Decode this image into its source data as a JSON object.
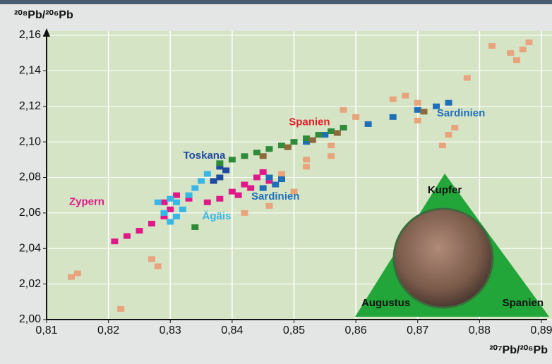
{
  "chart_data": {
    "type": "scatter",
    "y_axis_title": "²⁰⁸Pb/²⁰⁶Pb",
    "x_axis_title": "²⁰⁷Pb/²⁰⁶Pb",
    "xlim": [
      0.81,
      0.89
    ],
    "ylim": [
      2.0,
      2.16
    ],
    "grid": true,
    "xticks": [
      {
        "value": 0.81,
        "label": "0,81"
      },
      {
        "value": 0.82,
        "label": "0,82"
      },
      {
        "value": 0.83,
        "label": "0,83"
      },
      {
        "value": 0.84,
        "label": "0,84"
      },
      {
        "value": 0.85,
        "label": "0,85"
      },
      {
        "value": 0.86,
        "label": "0,86"
      },
      {
        "value": 0.87,
        "label": "0,87"
      },
      {
        "value": 0.88,
        "label": "0,88"
      },
      {
        "value": 0.89,
        "label": "0,89"
      }
    ],
    "yticks": [
      {
        "value": 2.0,
        "label": "2,00"
      },
      {
        "value": 2.02,
        "label": "2,02"
      },
      {
        "value": 2.04,
        "label": "2,04"
      },
      {
        "value": 2.06,
        "label": "2,06"
      },
      {
        "value": 2.08,
        "label": "2,08"
      },
      {
        "value": 2.1,
        "label": "2,10"
      },
      {
        "value": 2.12,
        "label": "2,12"
      },
      {
        "value": 2.14,
        "label": "2,14"
      },
      {
        "value": 2.16,
        "label": "2,16"
      }
    ],
    "series": [
      {
        "color": "#e8a47c",
        "x": [
          0.815,
          0.814,
          0.822,
          0.827,
          0.828,
          0.842,
          0.846,
          0.85,
          0.852,
          0.856,
          0.86,
          0.858,
          0.852,
          0.866,
          0.868,
          0.87,
          0.875,
          0.874,
          0.876,
          0.878,
          0.882,
          0.885,
          0.887,
          0.888,
          0.886,
          0.87,
          0.848,
          0.856
        ],
        "y": [
          2.026,
          2.024,
          2.006,
          2.034,
          2.03,
          2.06,
          2.064,
          2.072,
          2.09,
          2.098,
          2.114,
          2.118,
          2.086,
          2.124,
          2.126,
          2.122,
          2.104,
          2.098,
          2.108,
          2.136,
          2.154,
          2.15,
          2.152,
          2.156,
          2.146,
          2.112,
          2.082,
          2.092
        ]
      },
      {
        "name": "Zypern",
        "color": "#e0188a",
        "label_color": "#e0188a",
        "x": [
          0.821,
          0.823,
          0.825,
          0.827,
          0.829,
          0.83,
          0.829,
          0.831,
          0.833,
          0.836,
          0.838,
          0.84,
          0.842,
          0.844,
          0.845,
          0.841,
          0.843,
          0.846
        ],
        "y": [
          2.044,
          2.047,
          2.05,
          2.054,
          2.058,
          2.062,
          2.066,
          2.07,
          2.068,
          2.066,
          2.068,
          2.072,
          2.076,
          2.08,
          2.083,
          2.07,
          2.074,
          2.078
        ]
      },
      {
        "name": "Ägäis",
        "color": "#38b6e6",
        "label_color": "#38b6e6",
        "x": [
          0.829,
          0.83,
          0.831,
          0.832,
          0.831,
          0.833,
          0.834,
          0.835,
          0.836,
          0.83,
          0.828
        ],
        "y": [
          2.06,
          2.055,
          2.058,
          2.062,
          2.066,
          2.07,
          2.074,
          2.078,
          2.082,
          2.068,
          2.066
        ]
      },
      {
        "name": "Toskana",
        "color": "#1e4aa0",
        "label_color": "#1e4aa0",
        "x": [
          0.838,
          0.839,
          0.838,
          0.837
        ],
        "y": [
          2.086,
          2.084,
          2.08,
          2.078
        ]
      },
      {
        "name": "Sardinien",
        "color": "#1f6fb8",
        "label_color": "#1f6fb8",
        "x": [
          0.846,
          0.847,
          0.845,
          0.848,
          0.852,
          0.855,
          0.858,
          0.862,
          0.866,
          0.87,
          0.873,
          0.875
        ],
        "y": [
          2.08,
          2.076,
          2.074,
          2.079,
          2.1,
          2.104,
          2.108,
          2.11,
          2.114,
          2.118,
          2.12,
          2.122
        ]
      },
      {
        "name": "Spanien",
        "color": "#2e8b3a",
        "label_color": "#e0202a",
        "x": [
          0.838,
          0.84,
          0.842,
          0.844,
          0.846,
          0.848,
          0.85,
          0.852,
          0.854,
          0.856,
          0.858,
          0.834
        ],
        "y": [
          2.088,
          2.09,
          2.092,
          2.094,
          2.096,
          2.098,
          2.1,
          2.102,
          2.104,
          2.106,
          2.108,
          2.052
        ]
      },
      {
        "color": "#8a6a3a",
        "x": [
          0.845,
          0.849,
          0.853,
          0.857,
          0.871
        ],
        "y": [
          2.092,
          2.097,
          2.101,
          2.105,
          2.117
        ]
      }
    ],
    "inset": {
      "top": "Kupfer",
      "left": "Augustus",
      "right": "Spanien"
    }
  }
}
